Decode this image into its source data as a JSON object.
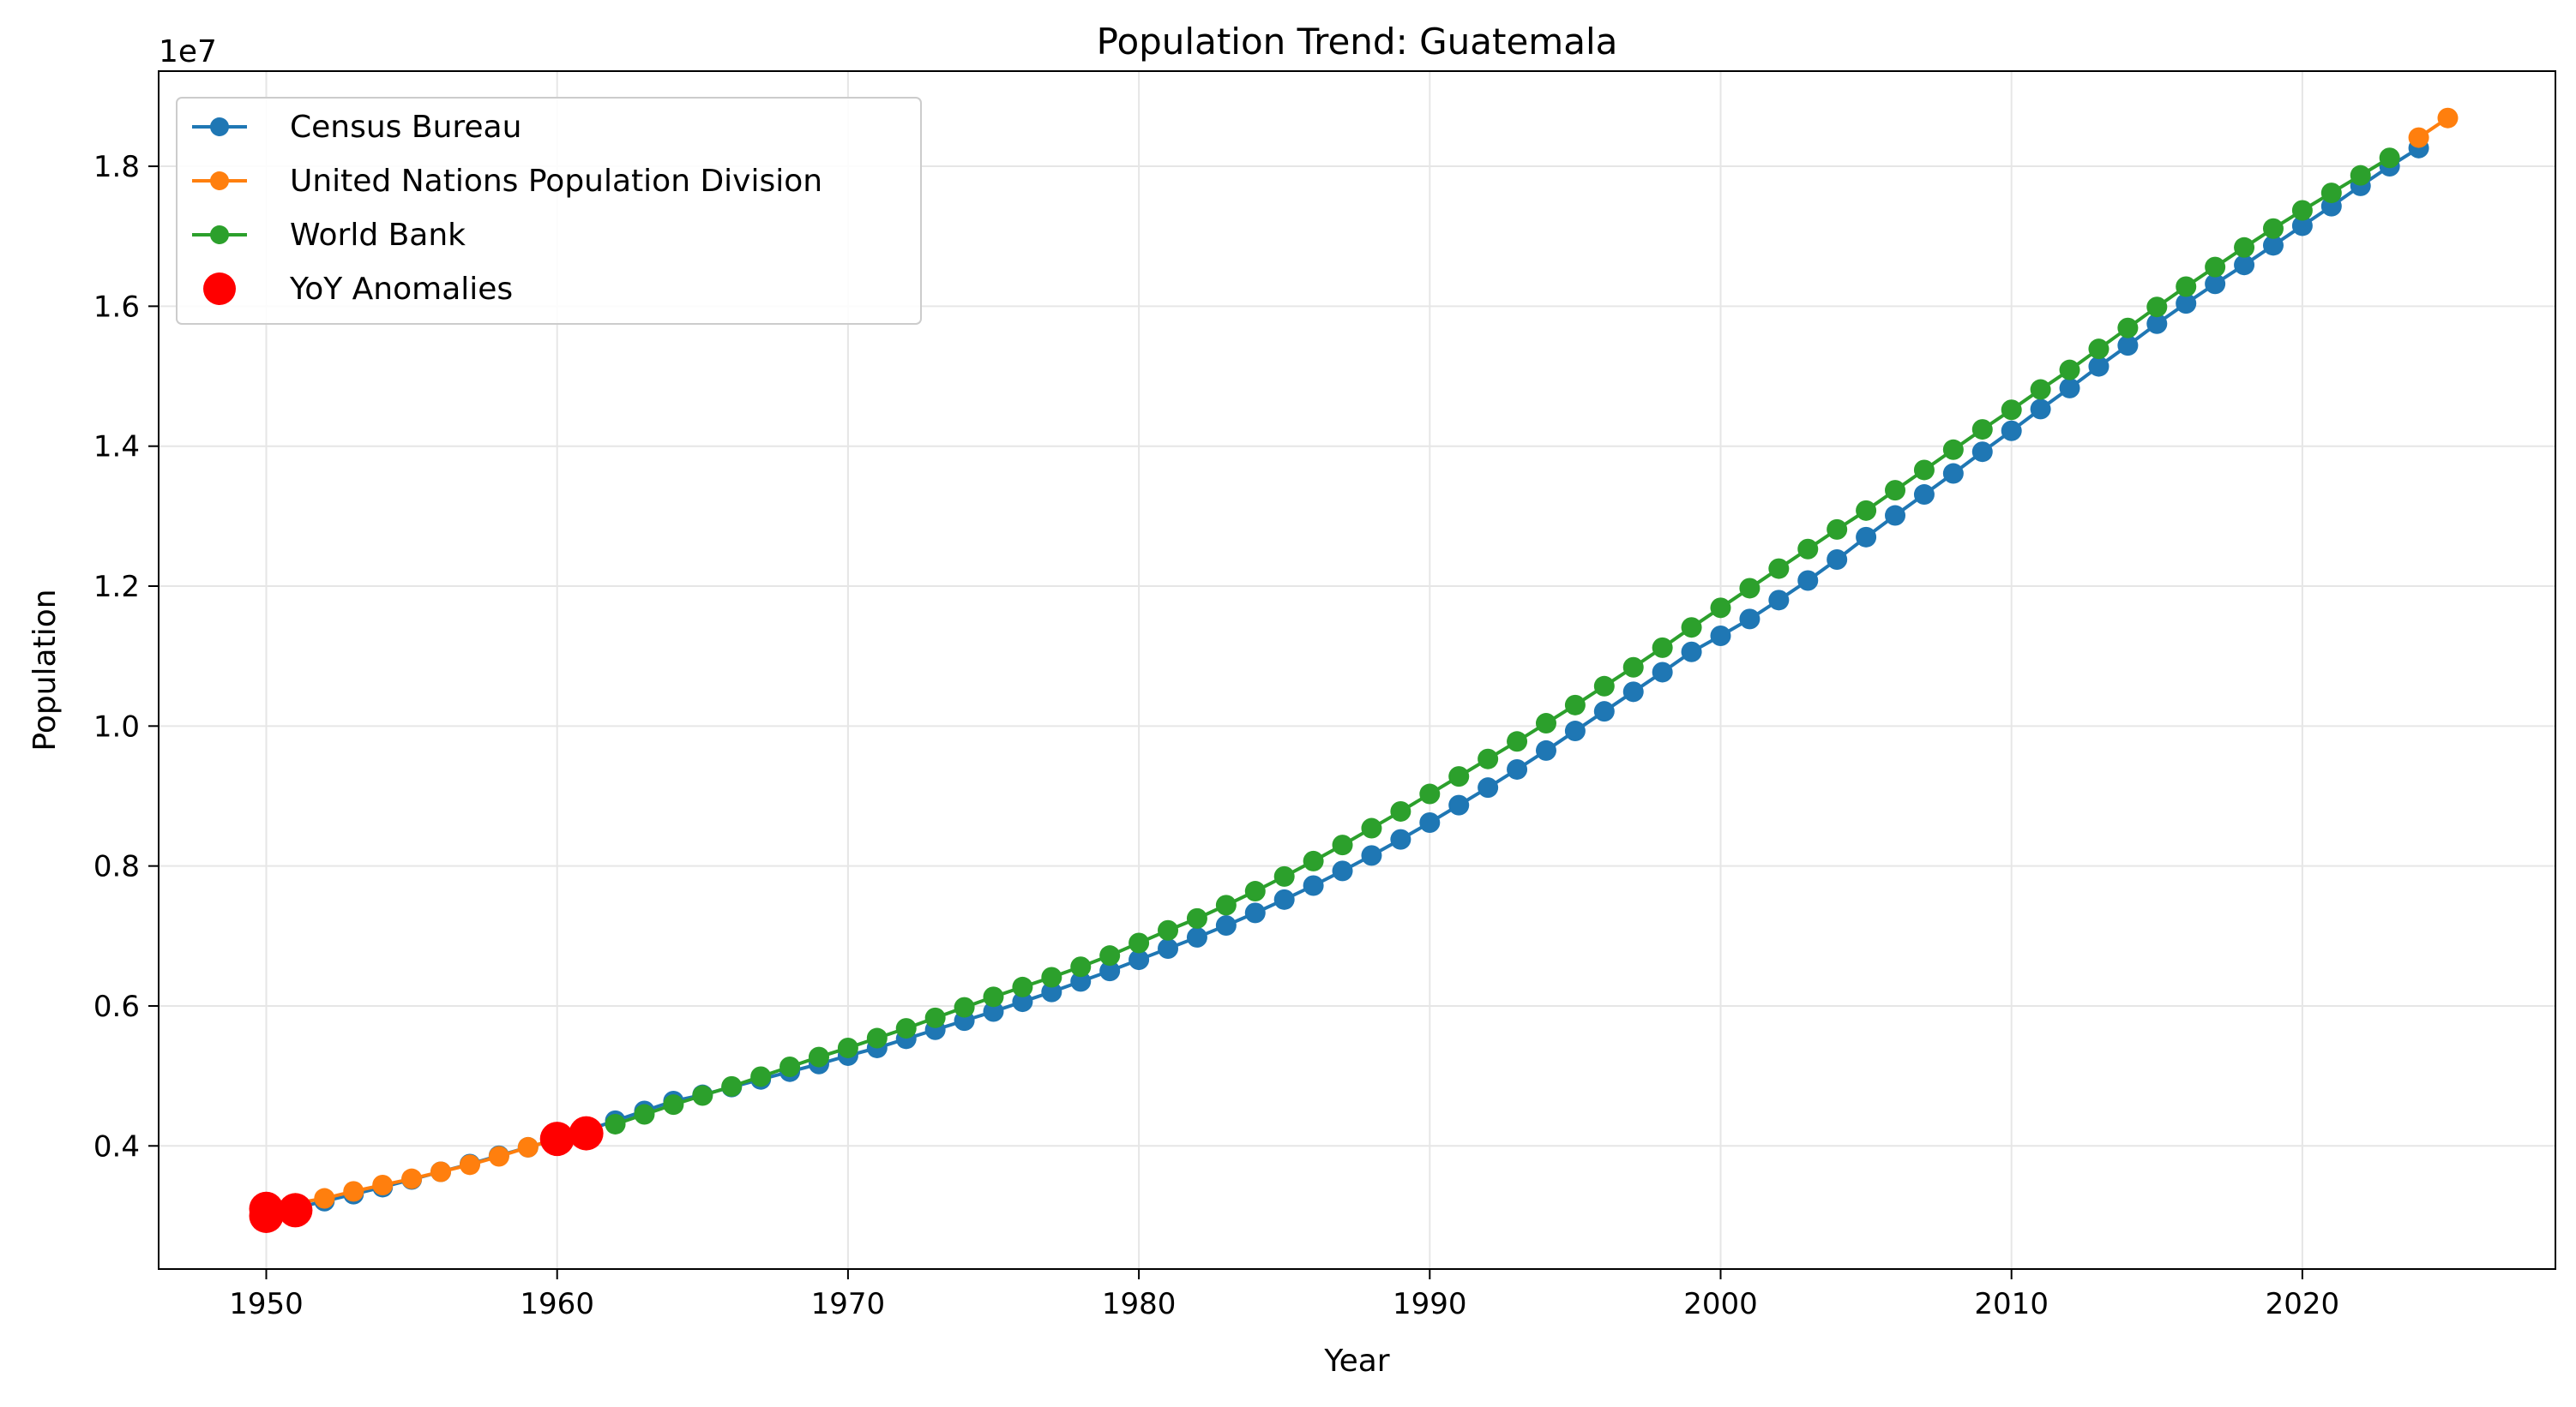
{
  "chart_data": {
    "type": "line",
    "title": "Population Trend: Guatemala",
    "xlabel": "Year",
    "ylabel": "Population",
    "y_offset_label": "1e7",
    "xlim": [
      1946.3,
      2028.7
    ],
    "ylim": [
      2240000,
      19360000
    ],
    "x_ticks": [
      1950,
      1960,
      1970,
      1980,
      1990,
      2000,
      2010,
      2020
    ],
    "x_tick_labels": [
      "1950",
      "1960",
      "1970",
      "1980",
      "1990",
      "2000",
      "2010",
      "2020"
    ],
    "y_ticks": [
      4000000,
      6000000,
      8000000,
      10000000,
      12000000,
      14000000,
      16000000,
      18000000
    ],
    "y_tick_labels": [
      "0.4",
      "0.6",
      "0.8",
      "1.0",
      "1.2",
      "1.4",
      "1.6",
      "1.8"
    ],
    "grid": true,
    "legend_position": "top-left",
    "series": [
      {
        "name": "Census Bureau",
        "color": "#1f77b4",
        "x": [
          1950,
          1951,
          1952,
          1953,
          1954,
          1955,
          1956,
          1957,
          1958,
          1959,
          1960,
          1961,
          1962,
          1963,
          1964,
          1965,
          1966,
          1967,
          1968,
          1969,
          1970,
          1971,
          1972,
          1973,
          1974,
          1975,
          1976,
          1977,
          1978,
          1979,
          1980,
          1981,
          1982,
          1983,
          1984,
          1985,
          1986,
          1987,
          1988,
          1989,
          1990,
          1991,
          1992,
          1993,
          1994,
          1995,
          1996,
          1997,
          1998,
          1999,
          2000,
          2001,
          2002,
          2003,
          2004,
          2005,
          2006,
          2007,
          2008,
          2009,
          2010,
          2011,
          2012,
          2013,
          2014,
          2015,
          2016,
          2017,
          2018,
          2019,
          2020,
          2021,
          2022,
          2023,
          2024
        ],
        "y": [
          3020000,
          3110000,
          3210000,
          3310000,
          3410000,
          3520000,
          3630000,
          3740000,
          3860000,
          3980000,
          4100000,
          4220000,
          4360000,
          4500000,
          4640000,
          4730000,
          4840000,
          4950000,
          5060000,
          5170000,
          5290000,
          5400000,
          5530000,
          5660000,
          5790000,
          5920000,
          6060000,
          6200000,
          6350000,
          6500000,
          6660000,
          6820000,
          6980000,
          7150000,
          7330000,
          7520000,
          7720000,
          7930000,
          8150000,
          8380000,
          8620000,
          8870000,
          9120000,
          9380000,
          9650000,
          9930000,
          10210000,
          10490000,
          10770000,
          11060000,
          11290000,
          11530000,
          11800000,
          12080000,
          12380000,
          12700000,
          13010000,
          13310000,
          13610000,
          13920000,
          14220000,
          14530000,
          14830000,
          15140000,
          15440000,
          15750000,
          16040000,
          16320000,
          16590000,
          16870000,
          17150000,
          17430000,
          17720000,
          18000000,
          18260000
        ]
      },
      {
        "name": "United Nations Population Division",
        "color": "#ff7f0e",
        "x": [
          1950,
          1951,
          1952,
          1953,
          1954,
          1955,
          1956,
          1957,
          1958,
          1959,
          1960,
          1961,
          2024,
          2025
        ],
        "y": [
          3100000,
          3180000,
          3250000,
          3350000,
          3440000,
          3530000,
          3630000,
          3730000,
          3850000,
          3980000,
          4100000,
          4230000,
          18410000,
          18690000
        ]
      },
      {
        "name": "World Bank",
        "color": "#2ca02c",
        "x": [
          1962,
          1963,
          1964,
          1965,
          1966,
          1967,
          1968,
          1969,
          1970,
          1971,
          1972,
          1973,
          1974,
          1975,
          1976,
          1977,
          1978,
          1979,
          1980,
          1981,
          1982,
          1983,
          1984,
          1985,
          1986,
          1987,
          1988,
          1989,
          1990,
          1991,
          1992,
          1993,
          1994,
          1995,
          1996,
          1997,
          1998,
          1999,
          2000,
          2001,
          2002,
          2003,
          2004,
          2005,
          2006,
          2007,
          2008,
          2009,
          2010,
          2011,
          2012,
          2013,
          2014,
          2015,
          2016,
          2017,
          2018,
          2019,
          2020,
          2021,
          2022,
          2023
        ],
        "y": [
          4310000,
          4450000,
          4590000,
          4720000,
          4850000,
          4990000,
          5130000,
          5270000,
          5400000,
          5540000,
          5680000,
          5830000,
          5980000,
          6130000,
          6270000,
          6410000,
          6560000,
          6720000,
          6900000,
          7080000,
          7250000,
          7440000,
          7640000,
          7850000,
          8070000,
          8300000,
          8540000,
          8780000,
          9030000,
          9280000,
          9530000,
          9780000,
          10040000,
          10300000,
          10570000,
          10840000,
          11120000,
          11410000,
          11690000,
          11970000,
          12250000,
          12530000,
          12810000,
          13080000,
          13370000,
          13660000,
          13950000,
          14240000,
          14520000,
          14810000,
          15090000,
          15390000,
          15690000,
          15990000,
          16280000,
          16560000,
          16840000,
          17110000,
          17370000,
          17620000,
          17870000,
          18120000
        ]
      },
      {
        "name": "YoY Anomalies",
        "color": "#ff0000",
        "marker_only": true,
        "x": [
          1950,
          1950,
          1951,
          1960,
          1961
        ],
        "y": [
          3100000,
          3000000,
          3080000,
          4100000,
          4180000
        ]
      }
    ]
  }
}
